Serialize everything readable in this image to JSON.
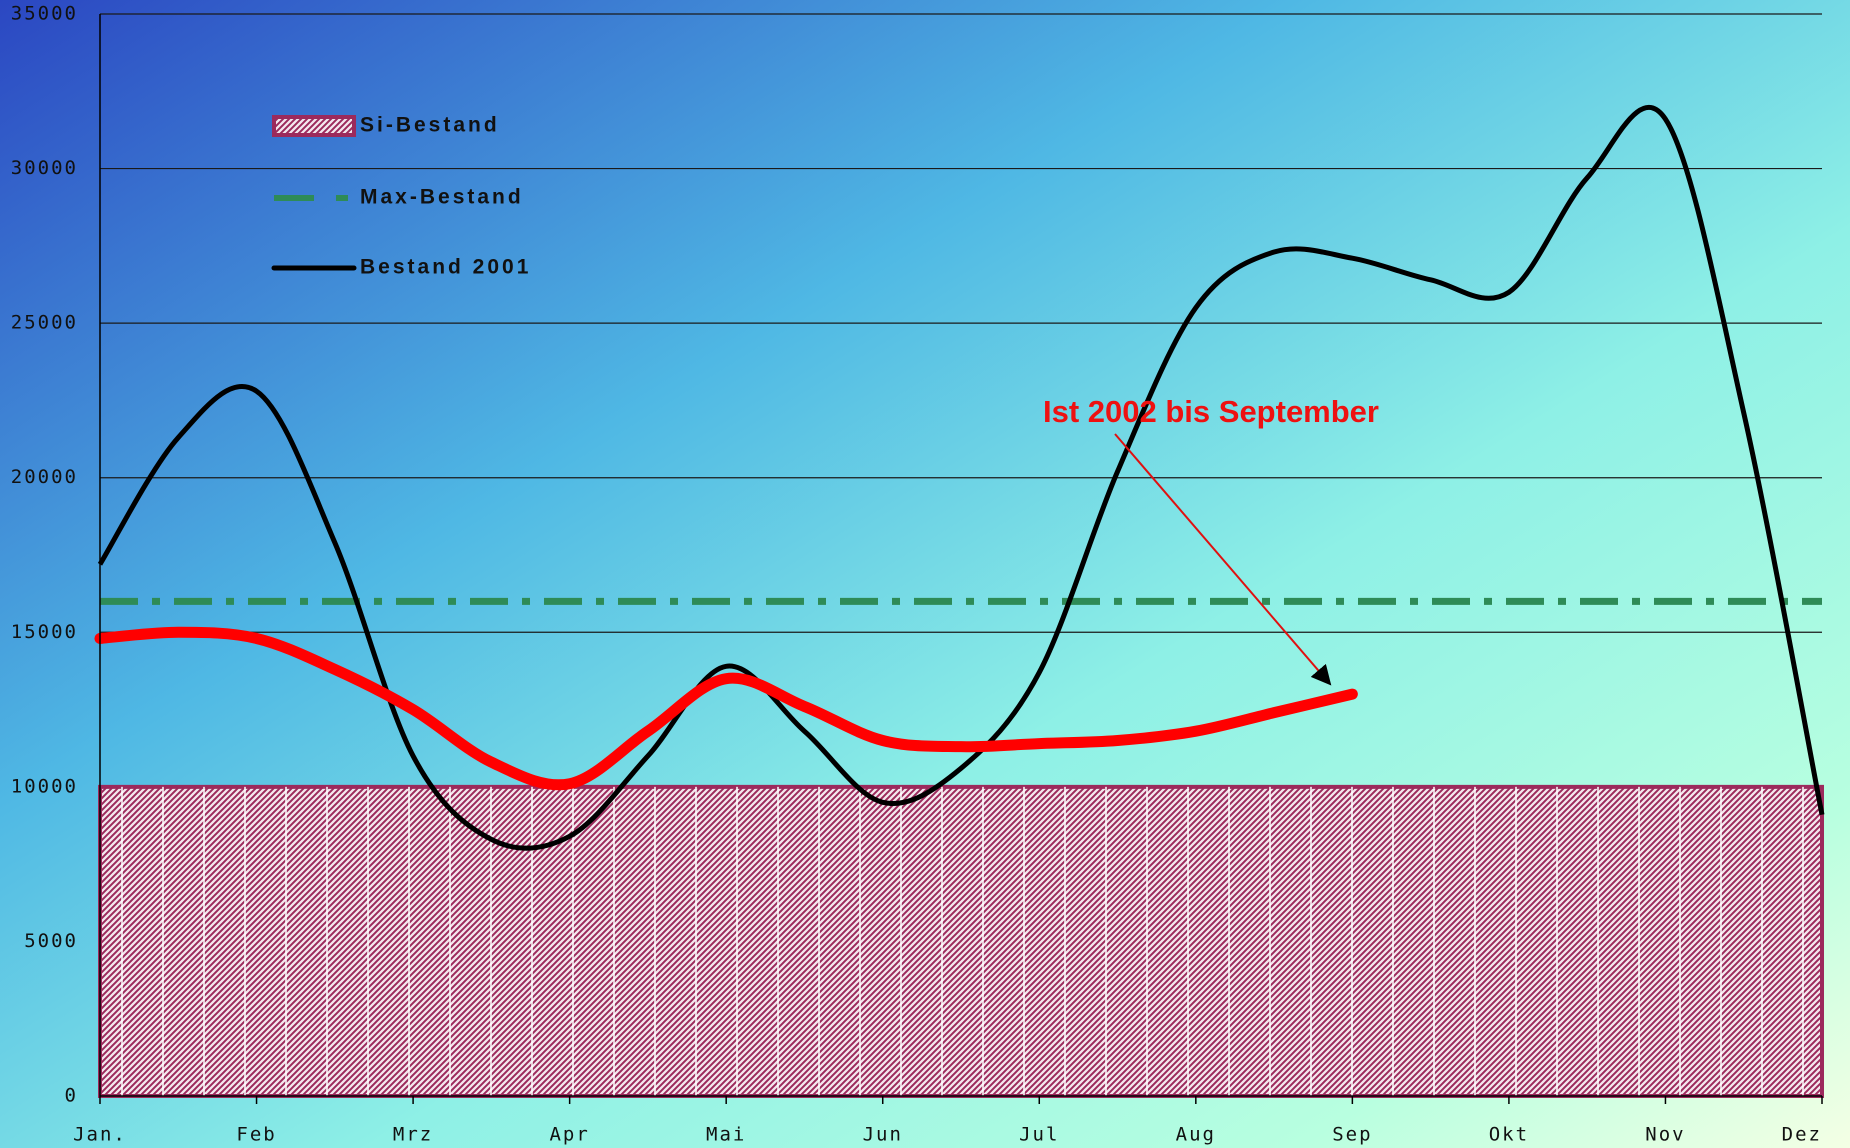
{
  "chart_data": {
    "type": "line",
    "categories": [
      "Jan.",
      null,
      "Feb",
      null,
      "Mrz",
      null,
      "Apr",
      null,
      "Mai",
      null,
      "Jun",
      null,
      "Jul",
      null,
      "Aug",
      null,
      "Sep",
      null,
      "Okt",
      null,
      "Nov",
      null,
      "Dez"
    ],
    "series": [
      {
        "name": "Si-Bestand",
        "color": "#9c2a5c",
        "kind": "area",
        "values": [
          10000,
          10000,
          10000,
          10000,
          10000,
          10000,
          10000,
          10000,
          10000,
          10000,
          10000,
          10000,
          10000,
          10000,
          10000,
          10000,
          10000,
          10000,
          10000,
          10000,
          10000,
          10000,
          10000
        ]
      },
      {
        "name": "Max-Bestand",
        "color": "#2e8b57",
        "kind": "dashdot",
        "values": [
          16000,
          16000,
          16000,
          16000,
          16000,
          16000,
          16000,
          16000,
          16000,
          16000,
          16000,
          16000,
          16000,
          16000,
          16000,
          16000,
          16000,
          16000,
          16000,
          16000,
          16000,
          16000,
          16000
        ]
      },
      {
        "name": "Bestand 2001",
        "color": "#000000",
        "kind": "line",
        "values": [
          17200,
          21300,
          22800,
          17900,
          11000,
          8300,
          8400,
          11000,
          13900,
          11800,
          9500,
          10600,
          13700,
          20200,
          25500,
          27300,
          27100,
          26400,
          26000,
          29700,
          31600,
          22100,
          9100
        ]
      },
      {
        "color": "#ff0000",
        "kind": "thick",
        "values": [
          14800,
          15000,
          14800,
          13800,
          12500,
          10800,
          10100,
          11800,
          13500,
          12600,
          11500,
          11300,
          11400,
          11500,
          11800,
          12400,
          13000,
          null,
          null,
          null,
          null,
          null,
          null
        ]
      }
    ],
    "annotation": "Ist 2002 bis September",
    "ylim": [
      0,
      35000
    ],
    "yticks": [
      0,
      5000,
      10000,
      15000,
      20000,
      25000,
      30000,
      35000
    ],
    "grid": true
  }
}
